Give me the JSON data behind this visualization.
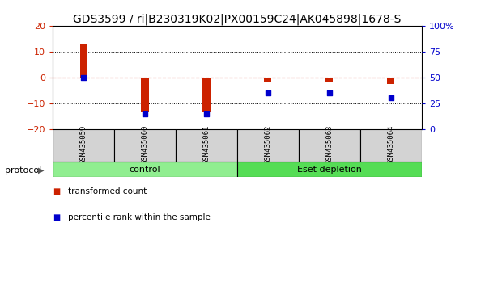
{
  "title": "GDS3599 / ri|B230319K02|PX00159C24|AK045898|1678-S",
  "samples": [
    "GSM435059",
    "GSM435060",
    "GSM435061",
    "GSM435062",
    "GSM435063",
    "GSM435064"
  ],
  "red_values": [
    13.0,
    -13.5,
    -13.5,
    -1.5,
    -2.0,
    -2.5
  ],
  "blue_percentiles": [
    50,
    15,
    15,
    35,
    35,
    30
  ],
  "ylim_left": [
    -20,
    20
  ],
  "ylim_right": [
    0,
    100
  ],
  "yticks_left": [
    -20,
    -10,
    0,
    10,
    20
  ],
  "yticks_right": [
    0,
    25,
    50,
    75,
    100
  ],
  "yticklabels_right": [
    "0",
    "25",
    "50",
    "75",
    "100%"
  ],
  "red_color": "#cc2200",
  "blue_color": "#0000cc",
  "dashed_line_color": "#cc2200",
  "group_info": [
    {
      "start": 0,
      "end": 3,
      "label": "control",
      "color": "#90ee90"
    },
    {
      "start": 3,
      "end": 6,
      "label": "Eset depletion",
      "color": "#55dd55"
    }
  ],
  "legend_items": [
    {
      "label": "transformed count",
      "color": "#cc2200"
    },
    {
      "label": "percentile rank within the sample",
      "color": "#0000cc"
    }
  ],
  "protocol_label": "protocol",
  "bar_width": 0.12,
  "blue_square_size": 25,
  "background_color": "#ffffff",
  "plot_bg_color": "#ffffff",
  "tick_label_color_left": "#cc2200",
  "tick_label_color_right": "#0000cc",
  "sample_box_color": "#d3d3d3",
  "title_fontsize": 10,
  "tick_fontsize": 8,
  "sample_fontsize": 6.5,
  "group_fontsize": 8,
  "legend_fontsize": 7.5
}
